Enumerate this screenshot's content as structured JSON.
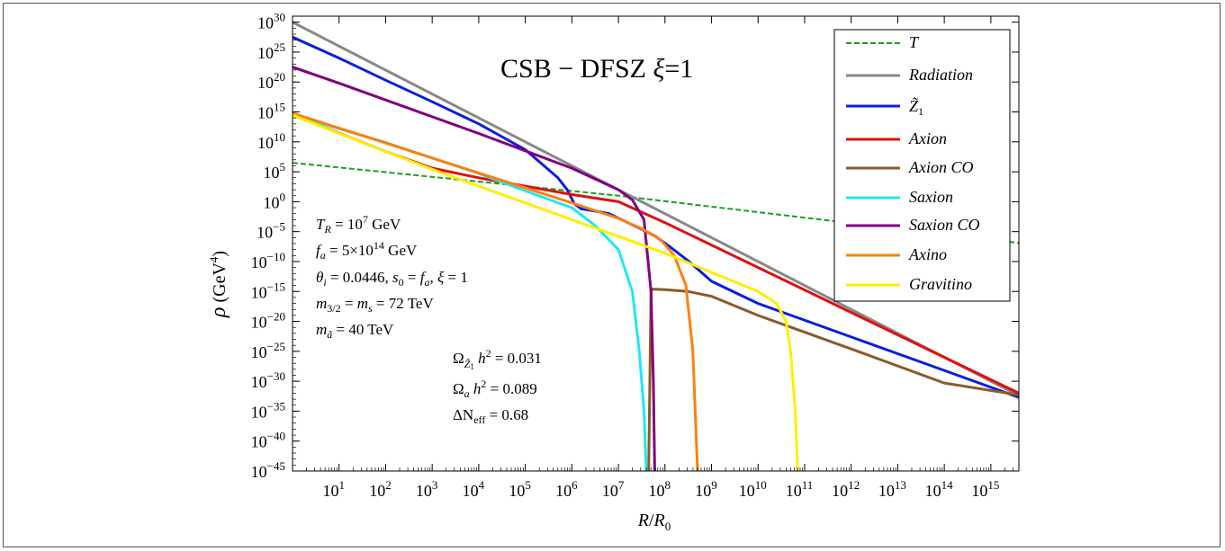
{
  "chart_data": {
    "type": "line",
    "title": "CSB − DFSZ ξ=1",
    "xlabel": "R/R0",
    "ylabel": "ρ (GeV4)",
    "x_scale": "log",
    "y_scale": "log",
    "xlim": [
      1,
      4000000000000000.0
    ],
    "ylim": [
      1e-45,
      1e+31
    ],
    "x_tick_exponents": [
      1,
      2,
      3,
      4,
      5,
      6,
      7,
      8,
      9,
      10,
      11,
      12,
      13,
      14,
      15
    ],
    "y_tick_exponents": [
      30,
      25,
      20,
      15,
      10,
      5,
      0,
      -5,
      -10,
      -15,
      -20,
      -25,
      -30,
      -35,
      -40,
      -45
    ],
    "legend_position": "top-right",
    "series": [
      {
        "name": "T",
        "color": "#1aa01a",
        "dashed": true,
        "points": [
          [
            0,
            6.5
          ],
          [
            7,
            1.0
          ],
          [
            15.6,
            -6.9
          ]
        ]
      },
      {
        "name": "Radiation",
        "color": "#888888",
        "points": [
          [
            0,
            30.0
          ],
          [
            15.6,
            -32.4
          ]
        ]
      },
      {
        "name": "Z̃1",
        "color": "#0a1ee0",
        "points": [
          [
            0,
            27.5
          ],
          [
            1,
            24.0
          ],
          [
            2,
            20.3
          ],
          [
            3,
            16.7
          ],
          [
            4,
            13.0
          ],
          [
            5,
            8.7
          ],
          [
            5.7,
            4.0
          ],
          [
            5.9,
            2.0
          ],
          [
            6.05,
            -0.3
          ],
          [
            6.2,
            -1.2
          ],
          [
            6.45,
            -1.5
          ],
          [
            6.8,
            -2.0
          ],
          [
            7.2,
            -3.5
          ],
          [
            7.5,
            -4.6
          ],
          [
            7.8,
            -5.8
          ],
          [
            8.1,
            -7.5
          ],
          [
            8.5,
            -9.9
          ],
          [
            9.0,
            -13.3
          ],
          [
            10,
            -17.0
          ],
          [
            12,
            -22.6
          ],
          [
            14,
            -28.2
          ],
          [
            15.6,
            -32.7
          ]
        ]
      },
      {
        "name": "Axion",
        "color": "#e01010",
        "points": [
          [
            0,
            14.5
          ],
          [
            2,
            8.4
          ],
          [
            3,
            5.6
          ],
          [
            4,
            4.0
          ],
          [
            5,
            2.6
          ],
          [
            6,
            1.2
          ],
          [
            7,
            0.0
          ],
          [
            8,
            -3.5
          ],
          [
            10,
            -11.0
          ],
          [
            12,
            -18.5
          ],
          [
            14,
            -26.0
          ],
          [
            15.6,
            -32.0
          ]
        ]
      },
      {
        "name": "Axion CO",
        "color": "#8b5a2b",
        "points": [
          [
            7.65,
            -45
          ],
          [
            7.7,
            -15.0
          ],
          [
            7.72,
            -14.6
          ],
          [
            8,
            -14.7
          ],
          [
            8.5,
            -15.0
          ],
          [
            9,
            -15.8
          ],
          [
            10,
            -19.0
          ],
          [
            12,
            -24.6
          ],
          [
            14,
            -30.3
          ],
          [
            15.6,
            -32.3
          ]
        ]
      },
      {
        "name": "Saxion",
        "color": "#20e8f0",
        "points": [
          [
            0,
            14.5
          ],
          [
            1,
            12.2
          ],
          [
            2,
            9.9
          ],
          [
            3,
            7.3
          ],
          [
            4,
            4.7
          ],
          [
            5,
            1.8
          ],
          [
            6,
            -1.0
          ],
          [
            6.5,
            -4.0
          ],
          [
            7,
            -8.0
          ],
          [
            7.3,
            -15.0
          ],
          [
            7.45,
            -25.0
          ],
          [
            7.55,
            -35.0
          ],
          [
            7.6,
            -45
          ]
        ]
      },
      {
        "name": "Saxion CO",
        "color": "#800080",
        "points": [
          [
            0,
            22.5
          ],
          [
            1,
            19.8
          ],
          [
            2,
            17.0
          ],
          [
            3,
            14.2
          ],
          [
            4,
            11.4
          ],
          [
            5,
            8.5
          ],
          [
            6,
            5.6
          ],
          [
            7,
            2.0
          ],
          [
            7.3,
            0.3
          ],
          [
            7.55,
            -3.0
          ],
          [
            7.7,
            -15.0
          ],
          [
            7.75,
            -30.0
          ],
          [
            7.78,
            -45
          ]
        ]
      },
      {
        "name": "Axino",
        "color": "#ff7f0e",
        "points": [
          [
            0,
            14.8
          ],
          [
            1,
            12.3
          ],
          [
            2,
            9.8
          ],
          [
            3,
            7.3
          ],
          [
            4,
            4.8
          ],
          [
            5,
            2.3
          ],
          [
            6,
            -0.2
          ],
          [
            7,
            -2.8
          ],
          [
            7.5,
            -4.5
          ],
          [
            7.9,
            -6.3
          ],
          [
            8.2,
            -9.0
          ],
          [
            8.45,
            -14.0
          ],
          [
            8.6,
            -25.0
          ],
          [
            8.65,
            -35.0
          ],
          [
            8.7,
            -45
          ]
        ]
      },
      {
        "name": "Gravitino",
        "color": "#ffee00",
        "points": [
          [
            0,
            14.5
          ],
          [
            1,
            11.4
          ],
          [
            2,
            8.4
          ],
          [
            3,
            5.4
          ],
          [
            4,
            2.6
          ],
          [
            5,
            -0.2
          ],
          [
            6,
            -3.0
          ],
          [
            7,
            -5.8
          ],
          [
            8,
            -8.6
          ],
          [
            9,
            -11.8
          ],
          [
            10,
            -15.0
          ],
          [
            10.4,
            -17.0
          ],
          [
            10.6,
            -20.0
          ],
          [
            10.7,
            -25.0
          ],
          [
            10.8,
            -35.0
          ],
          [
            10.85,
            -45
          ]
        ]
      }
    ],
    "annotations": [
      "T_R = 10^7 GeV",
      "f_a = 5×10^14 GeV",
      "θ_i = 0.0446,  s_0 = f_a,  ξ = 1",
      "m_3/2 = m_s = 72 TeV",
      "m_ã = 40 TeV",
      "Ω_Z̃1 h² = 0.031",
      "Ω_a h² = 0.089",
      "ΔN_eff = 0.68"
    ]
  },
  "text": {
    "title_main": "CSB − DFSZ ",
    "title_xi": "ξ",
    "title_tail": "=1",
    "xlabel_R": "R",
    "xlabel_slash": "/",
    "xlabel_R0": "R",
    "xlabel_sub": "0",
    "ylabel_rho": "ρ",
    "ylabel_unit": " (GeV",
    "ylabel_exp": "4",
    "ylabel_close": ")",
    "tick_base": "10",
    "legend": [
      "T",
      "Radiation",
      "Z̃",
      "Axion",
      "Axion CO",
      "Saxion",
      "Saxion CO",
      "Axino",
      "Gravitino"
    ],
    "legend_z_sub": "1",
    "ann1_a": "T",
    "ann1_b": "R",
    "ann1_c": " = 10",
    "ann1_d": "7",
    "ann1_e": " GeV",
    "ann2_a": "f",
    "ann2_b": "a",
    "ann2_c": " = 5×10",
    "ann2_d": "14",
    "ann2_e": " GeV",
    "ann3_a": "θ",
    "ann3_b": "i",
    "ann3_c": " = 0.0446,  ",
    "ann3_d": "s",
    "ann3_e": "0",
    "ann3_f": " = ",
    "ann3_g": "f",
    "ann3_h": "a",
    "ann3_i": ",  ",
    "ann3_j": "ξ",
    "ann3_k": " = 1",
    "ann4_a": "m",
    "ann4_b": "3/2",
    "ann4_c": " = ",
    "ann4_d": "m",
    "ann4_e": "s",
    "ann4_f": "  = 72 TeV",
    "ann5_a": "m",
    "ann5_b": "ã",
    "ann5_c": " = 40 TeV",
    "ann6_a": "Ω",
    "ann6_b": "Z̃",
    "ann6_c": "1",
    "ann6_d": " h",
    "ann6_e": "2",
    "ann6_f": " =  0.031",
    "ann7_a": "Ω",
    "ann7_b": "a",
    "ann7_c": " h",
    "ann7_d": "2",
    "ann7_e": " =  0.089",
    "ann8_a": "ΔN",
    "ann8_b": "eff",
    "ann8_c": "  =  0.68"
  }
}
